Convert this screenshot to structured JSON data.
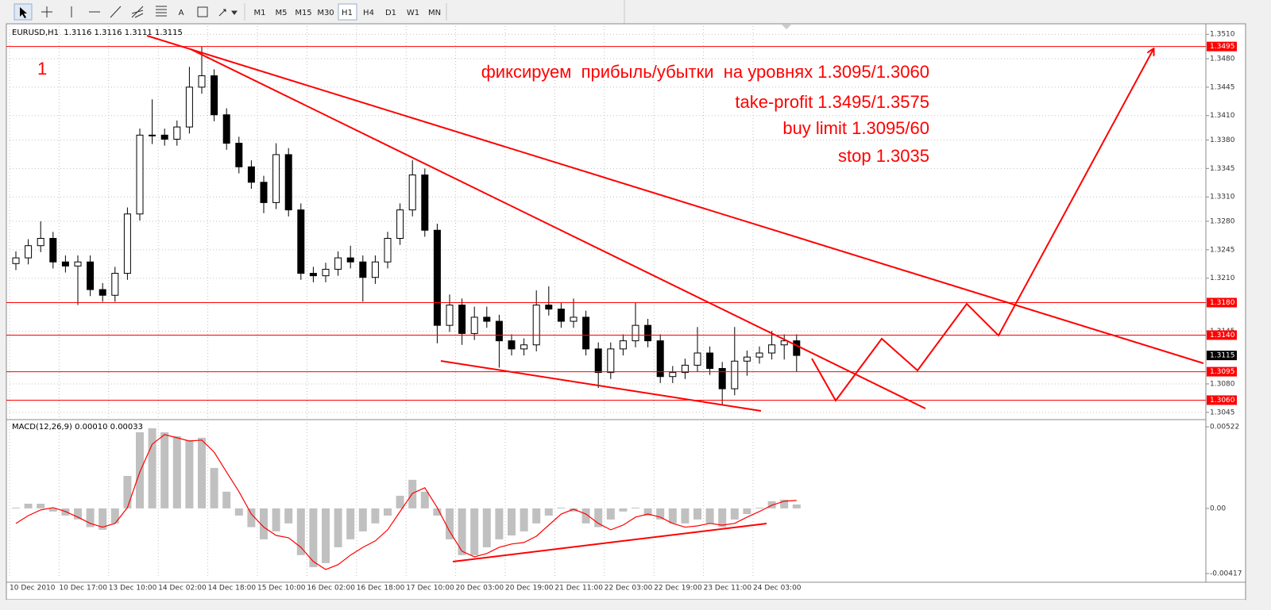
{
  "toolbar": {
    "buttons": [
      "A",
      "M1",
      "M5",
      "M15",
      "M30",
      "H1",
      "H4",
      "D1",
      "W1",
      "MN"
    ]
  },
  "chart_data": [
    {
      "type": "candlestick",
      "title": "EURUSD,H1  1.3116 1.3116 1.3111 1.3115",
      "annotations": [
        "1",
        "фиксируем  прибыль/убытки  на уровнях 1.3095/1.3060",
        "take-profit 1.3495/1.3575",
        "buy limit 1.3095/60",
        "stop 1.3035"
      ],
      "categories": [
        "10 Dec 2010",
        null,
        null,
        null,
        "10 Dec 17:00",
        null,
        null,
        null,
        "13 Dec 10:00",
        null,
        null,
        null,
        "14 Dec 02:00",
        null,
        null,
        null,
        "14 Dec 18:00",
        null,
        null,
        null,
        "15 Dec 10:00",
        null,
        null,
        null,
        "16 Dec 02:00",
        null,
        null,
        null,
        "16 Dec 18:00",
        null,
        null,
        null,
        "17 Dec 10:00",
        null,
        null,
        null,
        "20 Dec 03:00",
        null,
        null,
        null,
        "20 Dec 19:00",
        null,
        null,
        null,
        "21 Dec 11:00",
        null,
        null,
        null,
        "22 Dec 03:00",
        null,
        null,
        null,
        "22 Dec 19:00",
        null,
        null,
        null,
        "23 Dec 11:00",
        null,
        null,
        null,
        "24 Dec 03:00",
        null,
        null,
        null
      ],
      "open": [
        1.3228,
        1.3235,
        1.325,
        1.3259,
        1.323,
        1.3225,
        1.323,
        1.3196,
        1.3189,
        1.3216,
        1.3289,
        1.3386,
        1.3386,
        1.3381,
        1.3396,
        1.3445,
        1.3459,
        1.3411,
        1.3376,
        1.3347,
        1.3328,
        1.3303,
        1.3362,
        1.3294,
        1.3216,
        1.3213,
        1.3221,
        1.3235,
        1.323,
        1.3211,
        1.323,
        1.3259,
        1.3294,
        1.3337,
        1.3269,
        1.3152,
        1.3177,
        1.3142,
        1.3162,
        1.3157,
        1.3133,
        1.3123,
        1.3128,
        1.3177,
        1.3172,
        1.3157,
        1.3162,
        1.3123,
        1.3094,
        1.3123,
        1.3133,
        1.3152,
        1.3133,
        1.3089,
        1.3094,
        1.3103,
        1.3118,
        1.3099,
        1.3074,
        1.3108,
        1.3113,
        1.3118,
        1.3128,
        1.3133
      ],
      "high": [
        1.3243,
        1.3258,
        1.328,
        1.3267,
        1.3238,
        1.3238,
        1.3238,
        1.3204,
        1.3224,
        1.3297,
        1.3394,
        1.343,
        1.3394,
        1.3404,
        1.347,
        1.3495,
        1.3467,
        1.3419,
        1.3384,
        1.3355,
        1.3336,
        1.3376,
        1.337,
        1.3302,
        1.3224,
        1.3229,
        1.3243,
        1.325,
        1.3238,
        1.3238,
        1.3267,
        1.3302,
        1.3355,
        1.3345,
        1.3277,
        1.319,
        1.3185,
        1.3175,
        1.3175,
        1.3165,
        1.3141,
        1.3136,
        1.3195,
        1.32,
        1.318,
        1.3185,
        1.317,
        1.3131,
        1.3131,
        1.3141,
        1.318,
        1.316,
        1.3141,
        1.3102,
        1.3111,
        1.315,
        1.3126,
        1.3107,
        1.315,
        1.3121,
        1.3126,
        1.3145,
        1.3141,
        1.3141
      ],
      "low": [
        1.322,
        1.3227,
        1.3242,
        1.3222,
        1.3217,
        1.3177,
        1.3188,
        1.3181,
        1.3181,
        1.3208,
        1.3281,
        1.3375,
        1.3373,
        1.3373,
        1.3388,
        1.3437,
        1.3403,
        1.3368,
        1.3339,
        1.332,
        1.329,
        1.3295,
        1.3286,
        1.3208,
        1.3205,
        1.3205,
        1.3213,
        1.3222,
        1.3181,
        1.3203,
        1.3222,
        1.3251,
        1.3286,
        1.3261,
        1.313,
        1.3144,
        1.3128,
        1.3134,
        1.3149,
        1.31,
        1.3115,
        1.3115,
        1.312,
        1.3164,
        1.3149,
        1.3149,
        1.3115,
        1.3075,
        1.3086,
        1.3115,
        1.3125,
        1.3125,
        1.3081,
        1.3081,
        1.3086,
        1.3095,
        1.3091,
        1.3055,
        1.3066,
        1.309,
        1.3105,
        1.311,
        1.311,
        1.3095
      ],
      "close": [
        1.3235,
        1.325,
        1.3259,
        1.323,
        1.3225,
        1.323,
        1.3196,
        1.3189,
        1.3216,
        1.3289,
        1.3386,
        1.3386,
        1.3381,
        1.3396,
        1.3445,
        1.3459,
        1.3411,
        1.3376,
        1.3347,
        1.3328,
        1.3303,
        1.3362,
        1.3294,
        1.3216,
        1.3213,
        1.3221,
        1.3235,
        1.323,
        1.3211,
        1.323,
        1.3259,
        1.3294,
        1.3337,
        1.3269,
        1.3152,
        1.3177,
        1.3142,
        1.3162,
        1.3157,
        1.3133,
        1.3123,
        1.3128,
        1.3177,
        1.3172,
        1.3157,
        1.3162,
        1.3123,
        1.3094,
        1.3123,
        1.3133,
        1.3152,
        1.3133,
        1.3089,
        1.3094,
        1.3103,
        1.3118,
        1.3099,
        1.3074,
        1.3108,
        1.3113,
        1.3118,
        1.3128,
        1.3133,
        1.3115
      ],
      "color": "#000000",
      "ylim": [
        1.3038,
        1.352
      ],
      "yticks": [
        {
          "value": 1.351,
          "label": "1.3510"
        },
        {
          "value": 1.348,
          "label": "1.3480"
        },
        1.3445,
        {
          "value": 1.341,
          "label": "1.3410"
        },
        {
          "value": 1.338,
          "label": "1.3380"
        },
        1.3345,
        {
          "value": 1.331,
          "label": "1.3310"
        },
        {
          "value": 1.328,
          "label": "1.3280"
        },
        1.3245,
        {
          "value": 1.321,
          "label": "1.3210"
        },
        1.3145,
        {
          "value": 1.308,
          "label": "1.3080"
        },
        1.3045
      ],
      "grid": true,
      "levels": [
        1.3495,
        {
          "value": 1.318,
          "label": "1.3180"
        },
        {
          "value": 1.314,
          "label": "1.3140"
        },
        1.3095,
        {
          "value": 1.306,
          "label": "1.3060"
        }
      ],
      "level_color": "#ff0000",
      "last_price": 1.3115
    },
    {
      "type": "macd",
      "title": "MACD(12,26,9) 0.00010 0.00033",
      "series": [
        {
          "type": "bar",
          "color": "#c0c0c0",
          "values": [
            5e-05,
            0.0003,
            0.0003,
            -0.0002,
            -0.00046,
            -0.0007,
            -0.0012,
            -0.00137,
            -0.00096,
            0.00208,
            0.00487,
            0.00513,
            0.00487,
            0.00462,
            0.00437,
            0.00452,
            0.00259,
            0.00107,
            -0.00046,
            -0.0012,
            -0.00198,
            -0.00147,
            -0.00096,
            -0.00299,
            -0.00376,
            -0.0035,
            -0.00249,
            -0.00198,
            -0.00147,
            -0.00096,
            -0.00046,
            0.00081,
            0.00183,
            0.00107,
            -0.00046,
            -0.00198,
            -0.00299,
            -0.00299,
            -0.00249,
            -0.00198,
            -0.00173,
            -0.00147,
            -0.00096,
            -0.00046,
            5e-05,
            -0.0002,
            -0.00096,
            -0.0012,
            -0.00071,
            -0.0002,
            5e-05,
            -0.00046,
            -0.00071,
            -0.00096,
            -0.00096,
            -0.00071,
            -0.00096,
            -0.0012,
            -0.00071,
            -0.00036,
            5e-05,
            0.00046,
            0.00056,
            0.00025
          ]
        },
        {
          "type": "line",
          "color": "#ff0000",
          "values": [
            -0.00096,
            -0.00046,
            -0.0001,
            5e-05,
            -0.0002,
            -0.00056,
            -0.00096,
            -0.0012,
            -0.00096,
            5e-05,
            0.00233,
            0.00411,
            0.00472,
            0.00452,
            0.00431,
            0.00437,
            0.0036,
            0.00233,
            0.00107,
            -0.00036,
            -0.0012,
            -0.00173,
            -0.00188,
            -0.00249,
            -0.0034,
            -0.00391,
            -0.0036,
            -0.00299,
            -0.00249,
            -0.00208,
            -0.00137,
            -0.0002,
            0.00096,
            0.00132,
            5e-05,
            -0.00147,
            -0.00274,
            -0.0031,
            -0.00289,
            -0.00249,
            -0.00228,
            -0.00218,
            -0.00178,
            -0.00107,
            -0.00036,
            -5e-05,
            -0.00036,
            -0.00096,
            -0.00137,
            -0.00107,
            -0.00056,
            -0.00036,
            -0.00056,
            -0.00096,
            -0.0012,
            -0.00112,
            -0.00096,
            -0.00107,
            -0.00096,
            -0.00056,
            -0.0002,
            0.0002,
            0.00046,
            0.00051
          ]
        }
      ],
      "ylim": [
        -0.00437,
        0.00558
      ],
      "yticks": [
        0.00522,
        {
          "value": 0,
          "label": "0.00"
        },
        -0.00417
      ],
      "grid": false
    }
  ]
}
